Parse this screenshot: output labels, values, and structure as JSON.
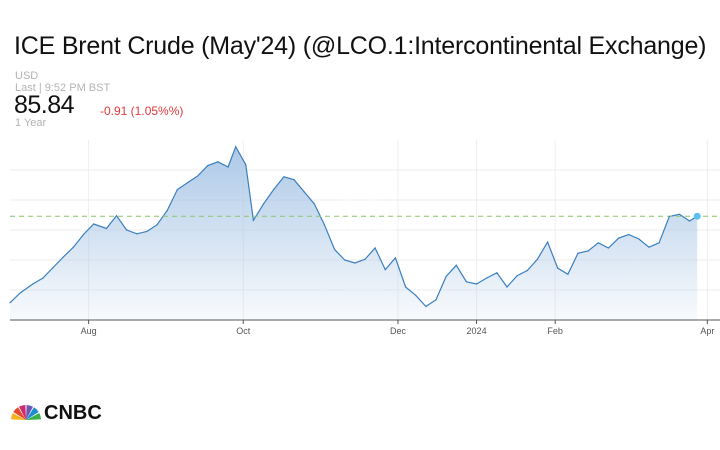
{
  "header": {
    "title": "ICE Brent Crude (May'24) (@LCO.1:Intercontinental Exchange)",
    "currency": "USD",
    "last_update": "Last | 9:52 PM BST",
    "price": "85.84",
    "change": "-0.91 (1.05%%)",
    "period": "1 Year"
  },
  "brand": {
    "name": "CNBC",
    "colors": [
      "#f5b120",
      "#e34a2d",
      "#d12a6d",
      "#6b58b5",
      "#1d8ccf",
      "#3aae4a"
    ]
  },
  "chart_data": {
    "type": "area",
    "title": "ICE Brent Crude (May'24) (@LCO.1:Intercontinental Exchange)",
    "x_ticks": [
      "Aug",
      "Oct",
      "Dec",
      "2024",
      "Feb",
      "Apr"
    ],
    "x_range": [
      "2023-07-01",
      "2024-04-06"
    ],
    "y_range": [
      72,
      96
    ],
    "grid": true,
    "reference_line": 85.84,
    "line_color": "#3a7fbf",
    "fill_color": "#a9c6e6",
    "marker_color": "#5bc0f0",
    "x": [
      "2023-07-01",
      "2023-07-05",
      "2023-07-10",
      "2023-07-14",
      "2023-07-18",
      "2023-07-22",
      "2023-07-26",
      "2023-07-30",
      "2023-08-03",
      "2023-08-08",
      "2023-08-12",
      "2023-08-16",
      "2023-08-20",
      "2023-08-24",
      "2023-08-28",
      "2023-09-01",
      "2023-09-05",
      "2023-09-09",
      "2023-09-13",
      "2023-09-17",
      "2023-09-21",
      "2023-09-25",
      "2023-09-28",
      "2023-10-02",
      "2023-10-05",
      "2023-10-09",
      "2023-10-13",
      "2023-10-17",
      "2023-10-21",
      "2023-10-25",
      "2023-10-29",
      "2023-11-02",
      "2023-11-06",
      "2023-11-10",
      "2023-11-14",
      "2023-11-18",
      "2023-11-22",
      "2023-11-26",
      "2023-11-30",
      "2023-12-04",
      "2023-12-08",
      "2023-12-12",
      "2023-12-16",
      "2023-12-20",
      "2023-12-24",
      "2023-12-28",
      "2024-01-01",
      "2024-01-05",
      "2024-01-09",
      "2024-01-13",
      "2024-01-17",
      "2024-01-21",
      "2024-01-25",
      "2024-01-29",
      "2024-02-02",
      "2024-02-06",
      "2024-02-10",
      "2024-02-14",
      "2024-02-18",
      "2024-02-22",
      "2024-02-26",
      "2024-03-01",
      "2024-03-05",
      "2024-03-09",
      "2024-03-13",
      "2024-03-17",
      "2024-03-21",
      "2024-03-25",
      "2024-03-28"
    ],
    "values": [
      74.3,
      75.6,
      76.8,
      77.6,
      79.0,
      80.4,
      81.7,
      83.4,
      84.8,
      84.2,
      85.9,
      84.0,
      83.5,
      83.8,
      84.7,
      86.6,
      89.4,
      90.3,
      91.2,
      92.6,
      93.1,
      92.4,
      95.1,
      92.7,
      85.3,
      87.5,
      89.4,
      91.1,
      90.7,
      89.1,
      87.5,
      84.7,
      81.4,
      80.0,
      79.6,
      80.1,
      81.6,
      78.7,
      80.3,
      76.4,
      75.3,
      73.8,
      74.7,
      77.8,
      79.3,
      77.1,
      76.8,
      77.6,
      78.3,
      76.4,
      77.9,
      78.6,
      80.1,
      82.4,
      78.9,
      78.1,
      80.9,
      81.2,
      82.3,
      81.6,
      82.9,
      83.4,
      82.8,
      81.7,
      82.3,
      85.8,
      86.1,
      85.2,
      85.84
    ]
  }
}
